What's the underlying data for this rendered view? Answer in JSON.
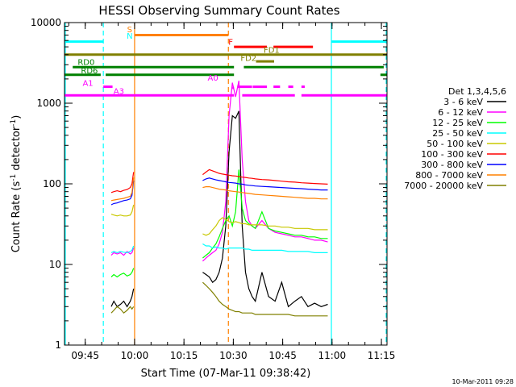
{
  "chart_data": {
    "type": "line",
    "title": "HESSI Observing Summary Count Rates",
    "xlabel": "Start Time (07-Mar-11 09:38:42)",
    "ylabel": "Count Rate (s⁻¹ detector⁻¹)",
    "ylabel_parts": {
      "main": "Count Rate (s",
      "sup1": "-1",
      "mid": " detector",
      "sup2": "-1",
      "end": ")"
    },
    "x_unit": "minutes since 09:38:42",
    "xlim": [
      0,
      98
    ],
    "ylim": [
      1,
      10000
    ],
    "y_scale": "log",
    "x_ticks": [
      {
        "value": 6.3,
        "label": "09:45"
      },
      {
        "value": 21.3,
        "label": "10:00"
      },
      {
        "value": 36.3,
        "label": "10:15"
      },
      {
        "value": 51.3,
        "label": "10:30"
      },
      {
        "value": 66.3,
        "label": "10:45"
      },
      {
        "value": 81.3,
        "label": "11:00"
      },
      {
        "value": 96.3,
        "label": "11:15"
      }
    ],
    "y_ticks": [
      {
        "value": 1,
        "label": "1"
      },
      {
        "value": 10,
        "label": "10"
      },
      {
        "value": 100,
        "label": "100"
      },
      {
        "value": 1000,
        "label": "1000"
      },
      {
        "value": 10000,
        "label": "10000"
      }
    ],
    "legend_title": "Det 1,3,4,5,6",
    "legend_position": "right",
    "series": [
      {
        "name": "3 - 6 keV",
        "color": "#000000",
        "x": [
          14.2,
          15,
          16,
          17,
          18,
          19,
          20,
          20.5,
          21,
          42,
          43,
          44,
          45,
          46,
          47,
          48,
          49,
          50,
          51,
          52,
          53,
          54,
          55,
          56,
          57,
          58,
          60,
          62,
          64,
          66,
          68,
          70,
          72,
          74,
          76,
          78,
          80
        ],
        "y": [
          3,
          3.5,
          3,
          3.2,
          3.5,
          3,
          3.5,
          4,
          5,
          8,
          7.5,
          7,
          6,
          6.5,
          8,
          12,
          30,
          250,
          700,
          650,
          800,
          30,
          8,
          5,
          4,
          3.5,
          8,
          4,
          3.5,
          6,
          3,
          3.5,
          4,
          3,
          3.3,
          3,
          3.2
        ]
      },
      {
        "name": "6 - 12 keV",
        "color": "#ff00ff",
        "x": [
          14.2,
          15,
          16,
          17,
          18,
          19,
          20,
          20.5,
          21,
          42,
          43,
          44,
          45,
          46,
          47,
          48,
          49,
          50,
          51,
          52,
          53,
          54,
          55,
          56,
          57,
          58,
          60,
          62,
          64,
          66,
          68,
          70,
          72,
          74,
          76,
          78,
          80
        ],
        "y": [
          13,
          14,
          13.5,
          14,
          13,
          14.5,
          13.5,
          14,
          16,
          11,
          12,
          13,
          14,
          15,
          18,
          25,
          60,
          700,
          1800,
          1200,
          1900,
          200,
          60,
          35,
          30,
          28,
          35,
          28,
          25,
          24,
          23,
          22,
          22,
          21,
          20,
          20,
          19
        ]
      },
      {
        "name": "12 - 25 keV",
        "color": "#00ff00",
        "x": [
          14.2,
          15,
          16,
          17,
          18,
          19,
          20,
          20.5,
          21,
          42,
          43,
          44,
          45,
          46,
          47,
          48,
          49,
          50,
          51,
          52,
          53,
          54,
          55,
          56,
          57,
          58,
          60,
          62,
          64,
          66,
          68,
          70,
          72,
          74,
          76,
          78,
          80
        ],
        "y": [
          7,
          7.5,
          7,
          7.5,
          7.8,
          7.2,
          7.5,
          8,
          9,
          12,
          13,
          14,
          16,
          18,
          22,
          28,
          35,
          40,
          30,
          45,
          150,
          50,
          35,
          32,
          30,
          28,
          45,
          28,
          26,
          25,
          24,
          23,
          23,
          22,
          22,
          21,
          21
        ]
      },
      {
        "name": "25 - 50 keV",
        "color": "#00ffff",
        "x": [
          14.2,
          15,
          16,
          17,
          18,
          19,
          20,
          20.5,
          21,
          42,
          43,
          44,
          45,
          46,
          47,
          48,
          49,
          50,
          51,
          52,
          53,
          54,
          55,
          56,
          57,
          58,
          60,
          62,
          64,
          66,
          68,
          70,
          72,
          74,
          76,
          78,
          80
        ],
        "y": [
          14,
          14.5,
          14,
          14.5,
          14.2,
          14,
          14.5,
          15,
          17,
          18,
          17,
          17,
          16,
          16.5,
          16,
          16,
          15.5,
          16,
          16,
          16,
          16,
          16,
          15.5,
          15.5,
          15,
          15,
          15,
          15,
          15,
          15,
          14.5,
          14.5,
          14.5,
          14.5,
          14,
          14,
          14
        ]
      },
      {
        "name": "50 - 100 keV",
        "color": "#c8c800",
        "x": [
          14.2,
          15,
          16,
          17,
          18,
          19,
          20,
          20.5,
          21,
          42,
          43,
          44,
          45,
          46,
          47,
          48,
          49,
          50,
          51,
          52,
          53,
          54,
          55,
          56,
          57,
          58,
          60,
          62,
          64,
          66,
          68,
          70,
          72,
          74,
          76,
          78,
          80
        ],
        "y": [
          42,
          41,
          40,
          41,
          40,
          40,
          41,
          45,
          55,
          24,
          23,
          24,
          27,
          30,
          35,
          38,
          36,
          34,
          33,
          34,
          33,
          32,
          32,
          31,
          31,
          31,
          31,
          30,
          30,
          29,
          29,
          28,
          28,
          28,
          27,
          27,
          27
        ]
      },
      {
        "name": "100 - 300 keV",
        "color": "#ff0000",
        "x": [
          14.2,
          15,
          16,
          17,
          18,
          19,
          20,
          20.5,
          21,
          42,
          43,
          44,
          45,
          46,
          47,
          48,
          49,
          50,
          51,
          52,
          53,
          54,
          55,
          56,
          57,
          58,
          60,
          62,
          64,
          66,
          68,
          70,
          72,
          74,
          76,
          78,
          80
        ],
        "y": [
          78,
          80,
          82,
          80,
          83,
          85,
          90,
          100,
          140,
          130,
          140,
          150,
          145,
          140,
          135,
          132,
          130,
          128,
          126,
          125,
          123,
          121,
          120,
          118,
          117,
          115,
          113,
          112,
          110,
          108,
          106,
          105,
          103,
          102,
          101,
          100,
          99
        ]
      },
      {
        "name": "300 - 800 keV",
        "color": "#0000ff",
        "x": [
          14.2,
          15,
          16,
          17,
          18,
          19,
          20,
          20.5,
          21,
          42,
          43,
          44,
          45,
          46,
          47,
          48,
          49,
          50,
          51,
          52,
          53,
          54,
          55,
          56,
          57,
          58,
          60,
          62,
          64,
          66,
          68,
          70,
          72,
          74,
          76,
          78,
          80
        ],
        "y": [
          55,
          57,
          58,
          60,
          62,
          63,
          65,
          72,
          110,
          110,
          115,
          118,
          115,
          112,
          110,
          108,
          106,
          104,
          103,
          102,
          100,
          99,
          97,
          96,
          95,
          94,
          93,
          92,
          91,
          90,
          89,
          88,
          87,
          86,
          85,
          84,
          84
        ]
      },
      {
        "name": "800 - 7000 keV",
        "color": "#ff8000",
        "x": [
          14.2,
          15,
          16,
          17,
          18,
          19,
          20,
          20.5,
          21,
          42,
          43,
          44,
          45,
          46,
          47,
          48,
          49,
          50,
          51,
          52,
          53,
          54,
          55,
          56,
          57,
          58,
          60,
          62,
          64,
          66,
          68,
          70,
          72,
          74,
          76,
          78,
          80
        ],
        "y": [
          62,
          63,
          64,
          65,
          66,
          68,
          70,
          78,
          120,
          90,
          92,
          92,
          90,
          88,
          86,
          85,
          84,
          82,
          81,
          80,
          79,
          78,
          77,
          76,
          75,
          74,
          73,
          72,
          71,
          70,
          69,
          68,
          67,
          66,
          66,
          65,
          65
        ]
      },
      {
        "name": "7000 - 20000 keV",
        "color": "#808000",
        "x": [
          14.2,
          15,
          16,
          17,
          18,
          19,
          20,
          20.5,
          21,
          42,
          43,
          44,
          45,
          46,
          47,
          48,
          49,
          50,
          51,
          52,
          53,
          54,
          55,
          56,
          57,
          58,
          60,
          62,
          64,
          66,
          68,
          70,
          72,
          74,
          76,
          78,
          80
        ],
        "y": [
          2.5,
          2.7,
          3,
          2.8,
          2.5,
          2.7,
          3,
          2.8,
          3,
          6,
          5.5,
          5,
          4.5,
          4,
          3.5,
          3.2,
          3,
          2.8,
          2.7,
          2.6,
          2.6,
          2.5,
          2.5,
          2.5,
          2.5,
          2.4,
          2.4,
          2.4,
          2.4,
          2.4,
          2.4,
          2.3,
          2.3,
          2.3,
          2.3,
          2.3,
          2.3
        ]
      }
    ],
    "vertical_lines": [
      {
        "x": 0,
        "color": "#00ffff",
        "style": "solid"
      },
      {
        "x": 11.8,
        "color": "#00ffff",
        "style": "dashed"
      },
      {
        "x": 21.3,
        "color": "#ff8000",
        "style": "solid"
      },
      {
        "x": 49.8,
        "color": "#ff8000",
        "style": "dashed"
      },
      {
        "x": 81.1,
        "color": "#00ffff",
        "style": "solid"
      },
      {
        "x": 98,
        "color": "#00ffff",
        "style": "dashed"
      }
    ],
    "annotation_bars": [
      {
        "label": "S",
        "color": "#ff8000",
        "y": 7000,
        "segments": [
          [
            21.3,
            49.8
          ]
        ]
      },
      {
        "label": "N",
        "color": "#00ffff",
        "y": 5800,
        "segments": [
          [
            0,
            11.8
          ],
          [
            81.1,
            98
          ]
        ]
      },
      {
        "label": "F",
        "color": "#ff0000",
        "y": 5000,
        "segments": [
          [
            51.5,
            61.5
          ],
          [
            63.5,
            75.5
          ]
        ]
      },
      {
        "label": "FD1",
        "color": "#808000",
        "y": 4000,
        "segments": [
          [
            0,
            98
          ]
        ]
      },
      {
        "label": "FD2",
        "color": "#808000",
        "y": 3300,
        "segments": [
          [
            58.2,
            63.7
          ]
        ]
      },
      {
        "label": "RD0",
        "color": "#008000",
        "y": 2800,
        "segments": [
          [
            2.5,
            51.5
          ],
          [
            54.5,
            97
          ]
        ]
      },
      {
        "label": "RD6",
        "color": "#008000",
        "y": 2250,
        "segments": [
          [
            0,
            11
          ],
          [
            12.5,
            51.5
          ],
          [
            96,
            98
          ]
        ]
      },
      {
        "label": "A1",
        "color": "#ff00ff",
        "y": 1600,
        "segments": [
          [
            11.8,
            14.6
          ],
          [
            52.5,
            57
          ],
          [
            57.2,
            61.5
          ],
          [
            63.5,
            65.5
          ],
          [
            68,
            69.5
          ],
          [
            72,
            73
          ]
        ]
      },
      {
        "label": "A0",
        "color": "#ff00ff",
        "y": 1550,
        "segments": [
          [
            51,
            51.5
          ]
        ]
      },
      {
        "label": "A3",
        "color": "#ff00ff",
        "y": 1250,
        "segments": [
          [
            0,
            51.5
          ],
          [
            54,
            70
          ],
          [
            72,
            98
          ]
        ]
      }
    ],
    "footer_date": "10-Mar-2011 09:28"
  }
}
